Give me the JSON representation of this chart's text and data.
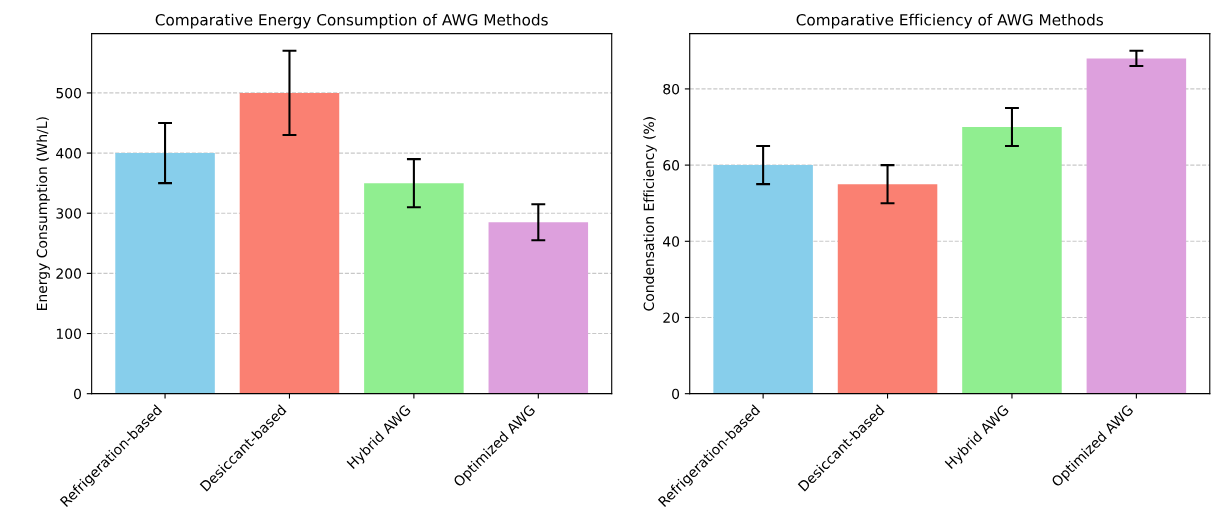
{
  "chart_data": [
    {
      "type": "bar",
      "title": "Comparative Energy Consumption of AWG Methods",
      "ylabel": "Energy Consumption (Wh/L)",
      "categories": [
        "Refrigeration-based",
        "Desiccant-based",
        "Hybrid AWG",
        "Optimized AWG"
      ],
      "values": [
        400,
        500,
        350,
        285
      ],
      "errors": [
        50,
        70,
        40,
        30
      ],
      "colors": [
        "#87ceeb",
        "#fa8072",
        "#90ee90",
        "#dda0dd"
      ],
      "ylim": [
        0,
        598.5
      ],
      "yticks": [
        0,
        100,
        200,
        300,
        400,
        500
      ],
      "grid": "y"
    },
    {
      "type": "bar",
      "title": "Comparative Efficiency of AWG Methods",
      "ylabel": "Condensation Efficiency (%)",
      "categories": [
        "Refrigeration-based",
        "Desiccant-based",
        "Hybrid AWG",
        "Optimized AWG"
      ],
      "values": [
        60,
        55,
        70,
        88
      ],
      "errors": [
        5,
        5,
        5,
        2
      ],
      "colors": [
        "#87ceeb",
        "#fa8072",
        "#90ee90",
        "#dda0dd"
      ],
      "ylim": [
        0,
        94.5
      ],
      "yticks": [
        0,
        20,
        40,
        60,
        80
      ],
      "grid": "y"
    }
  ]
}
